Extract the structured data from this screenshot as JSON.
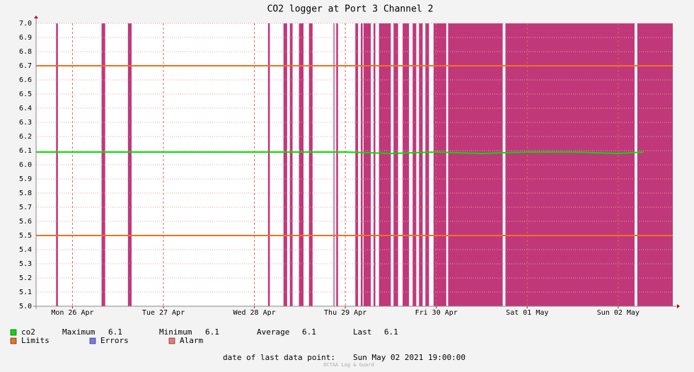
{
  "chart_data": {
    "type": "line",
    "title": "CO2 logger at Port 3 Channel 2",
    "x": [
      -0.4,
      0,
      0.5,
      1,
      1.5,
      2,
      2.5,
      3,
      3.5,
      4,
      4.5,
      5,
      5.5,
      6,
      6.28
    ],
    "series": [
      {
        "name": "co2",
        "color": "#00e000",
        "values": [
          6.09,
          6.09,
          6.09,
          6.09,
          6.09,
          6.09,
          6.09,
          6.09,
          6.08,
          6.09,
          6.08,
          6.09,
          6.09,
          6.08,
          6.09
        ]
      }
    ],
    "limits": {
      "name": "Limits",
      "color": "#f07020",
      "values": [
        6.7,
        5.5
      ]
    },
    "errors": {
      "name": "Errors",
      "color": "#7878f0"
    },
    "alarm": {
      "name": "Alarm",
      "color": "#f07878",
      "fill": "#c0387a",
      "intervals": [
        [
          -0.18,
          -0.16
        ],
        [
          0.32,
          0.36
        ],
        [
          0.61,
          0.65
        ],
        [
          2.15,
          2.17
        ],
        [
          2.32,
          2.36
        ],
        [
          2.39,
          2.42
        ],
        [
          2.49,
          2.54
        ],
        [
          2.6,
          2.64
        ],
        [
          2.87,
          2.88
        ],
        [
          2.9,
          2.92
        ],
        [
          3.11,
          3.14
        ],
        [
          3.17,
          3.19
        ],
        [
          3.2,
          3.28
        ],
        [
          3.31,
          3.33
        ],
        [
          3.37,
          3.5
        ],
        [
          3.53,
          3.58
        ],
        [
          3.63,
          3.7
        ],
        [
          3.74,
          3.78
        ],
        [
          3.81,
          3.85
        ],
        [
          3.88,
          3.92
        ],
        [
          3.97,
          4.11
        ],
        [
          4.13,
          4.73
        ],
        [
          4.76,
          6.18
        ],
        [
          6.21,
          6.6
        ]
      ]
    },
    "xlim": [
      -0.4,
      6.6
    ],
    "xticks": [
      {
        "value": 0,
        "label": "Mon 26 Apr"
      },
      {
        "value": 1,
        "label": "Tue 27 Apr"
      },
      {
        "value": 2,
        "label": "Wed 28 Apr"
      },
      {
        "value": 3,
        "label": "Thu 29 Apr"
      },
      {
        "value": 4,
        "label": "Fri 30 Apr"
      },
      {
        "value": 5,
        "label": "Sat 01 May"
      },
      {
        "value": 6,
        "label": "Sun 02 May"
      }
    ],
    "ylim": [
      5,
      7
    ],
    "yticks": [
      {
        "value": 5,
        "label": "5.0"
      },
      5.1,
      5.2,
      5.3,
      5.4,
      5.5,
      5.6,
      5.7,
      5.8,
      5.9,
      {
        "value": 6,
        "label": "6.0"
      },
      6.1,
      6.2,
      6.3,
      6.4,
      6.5,
      6.6,
      6.7,
      6.8,
      6.9,
      {
        "value": 7,
        "label": "7.0"
      }
    ],
    "grid": true,
    "stats": [
      {
        "label": "Maximum",
        "value": 6.1
      },
      {
        "label": "Minimum",
        "value": 6.1
      },
      {
        "label": "Average",
        "value": 6.1
      },
      {
        "label": "Last",
        "value": 6.1
      }
    ],
    "footer": {
      "label": "date of last data point:",
      "value": "Sun May 02 2021 19:00:00"
    },
    "watermark": "OCTAA Log & Guard"
  }
}
